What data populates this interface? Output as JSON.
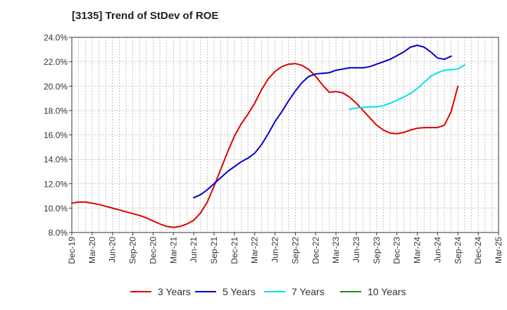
{
  "chart_data": {
    "type": "line",
    "title": "[3135]  Trend of StDev of ROE",
    "xlabel": "",
    "ylabel": "",
    "ylim": [
      8.0,
      24.0
    ],
    "y_ticks": [
      8.0,
      10.0,
      12.0,
      14.0,
      16.0,
      18.0,
      20.0,
      22.0,
      24.0
    ],
    "y_tick_labels": [
      "8.0%",
      "10.0%",
      "12.0%",
      "14.0%",
      "16.0%",
      "18.0%",
      "20.0%",
      "22.0%",
      "24.0%"
    ],
    "x_tick_labels": [
      "Dec-19",
      "Mar-20",
      "Jun-20",
      "Sep-20",
      "Dec-20",
      "Mar-21",
      "Jun-21",
      "Sep-21",
      "Dec-21",
      "Mar-22",
      "Jun-22",
      "Sep-22",
      "Dec-22",
      "Mar-23",
      "Jun-23",
      "Sep-23",
      "Dec-23",
      "Mar-24",
      "Jun-24",
      "Sep-24",
      "Dec-24",
      "Mar-25"
    ],
    "x_months": [
      "2019-12",
      "2020-01",
      "2020-02",
      "2020-03",
      "2020-04",
      "2020-05",
      "2020-06",
      "2020-07",
      "2020-08",
      "2020-09",
      "2020-10",
      "2020-11",
      "2020-12",
      "2021-01",
      "2021-02",
      "2021-03",
      "2021-04",
      "2021-05",
      "2021-06",
      "2021-07",
      "2021-08",
      "2021-09",
      "2021-10",
      "2021-11",
      "2021-12",
      "2022-01",
      "2022-02",
      "2022-03",
      "2022-04",
      "2022-05",
      "2022-06",
      "2022-07",
      "2022-08",
      "2022-09",
      "2022-10",
      "2022-11",
      "2022-12",
      "2023-01",
      "2023-02",
      "2023-03",
      "2023-04",
      "2023-05",
      "2023-06",
      "2023-07",
      "2023-08",
      "2023-09",
      "2023-10",
      "2023-11",
      "2023-12",
      "2024-01",
      "2024-02",
      "2024-03",
      "2024-04",
      "2024-05",
      "2024-06",
      "2024-07",
      "2024-08",
      "2024-09",
      "2024-10",
      "2024-11",
      "2024-12",
      "2025-01",
      "2025-02",
      "2025-03"
    ],
    "grid": true,
    "legend_position": "bottom",
    "series": [
      {
        "name": "3 Years",
        "color": "#dd0000",
        "values": [
          10.4,
          10.5,
          10.5,
          10.4,
          10.3,
          10.15,
          10.0,
          9.85,
          9.7,
          9.55,
          9.4,
          9.2,
          8.95,
          8.7,
          8.5,
          8.42,
          8.5,
          8.7,
          9.0,
          9.6,
          10.5,
          11.8,
          13.2,
          14.6,
          15.9,
          16.9,
          17.7,
          18.6,
          19.7,
          20.6,
          21.2,
          21.6,
          21.8,
          21.85,
          21.7,
          21.35,
          20.8,
          20.1,
          19.5,
          19.55,
          19.45,
          19.1,
          18.6,
          18.0,
          17.4,
          16.8,
          16.4,
          16.15,
          16.1,
          16.2,
          16.4,
          16.55,
          16.6,
          16.6,
          16.6,
          16.8,
          17.9,
          20.0,
          null,
          null,
          null,
          null,
          null,
          null
        ]
      },
      {
        "name": "5 Years",
        "color": "#0000cc",
        "values": [
          null,
          null,
          null,
          null,
          null,
          null,
          null,
          null,
          null,
          null,
          null,
          null,
          null,
          null,
          null,
          null,
          null,
          null,
          10.85,
          11.1,
          11.5,
          12.0,
          12.5,
          13.0,
          13.4,
          13.8,
          14.1,
          14.5,
          15.2,
          16.1,
          17.1,
          17.9,
          18.8,
          19.6,
          20.3,
          20.8,
          21.0,
          21.05,
          21.1,
          21.3,
          21.4,
          21.5,
          21.5,
          21.5,
          21.6,
          21.8,
          22.0,
          22.2,
          22.5,
          22.8,
          23.2,
          23.35,
          23.2,
          22.8,
          22.3,
          22.2,
          22.45,
          null,
          null,
          null,
          null,
          null,
          null,
          null
        ]
      },
      {
        "name": "7 Years",
        "color": "#00e5e5",
        "values": [
          null,
          null,
          null,
          null,
          null,
          null,
          null,
          null,
          null,
          null,
          null,
          null,
          null,
          null,
          null,
          null,
          null,
          null,
          null,
          null,
          null,
          null,
          null,
          null,
          null,
          null,
          null,
          null,
          null,
          null,
          null,
          null,
          null,
          null,
          null,
          null,
          null,
          null,
          null,
          null,
          null,
          18.1,
          18.2,
          18.25,
          18.3,
          18.3,
          18.4,
          18.6,
          18.85,
          19.1,
          19.4,
          19.8,
          20.3,
          20.8,
          21.1,
          21.3,
          21.35,
          21.4,
          21.75,
          null,
          null,
          null,
          null,
          null
        ]
      },
      {
        "name": "10 Years",
        "color": "#228B22",
        "values": []
      }
    ]
  }
}
